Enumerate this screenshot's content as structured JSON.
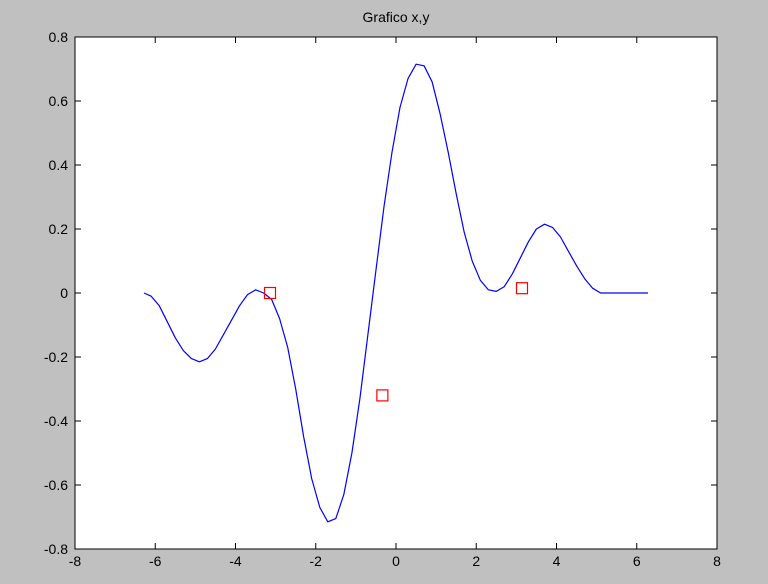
{
  "chart_data": {
    "type": "line",
    "title": "Grafico x,y",
    "xlabel": "",
    "ylabel": "",
    "xlim": [
      -8,
      8
    ],
    "ylim": [
      -0.8,
      0.8
    ],
    "xticks": [
      -8,
      -6,
      -4,
      -2,
      0,
      2,
      4,
      6,
      8
    ],
    "yticks": [
      -0.8,
      -0.6,
      -0.4,
      -0.2,
      0,
      0.2,
      0.4,
      0.6,
      0.8
    ],
    "xtick_labels": [
      "-8",
      "-6",
      "-4",
      "-2",
      "0",
      "2",
      "4",
      "6",
      "8"
    ],
    "ytick_labels": [
      "-0.8",
      "-0.6",
      "-0.4",
      "-0.2",
      "0",
      "0.2",
      "0.4",
      "0.6",
      "0.8"
    ],
    "grid": false,
    "series": [
      {
        "color": "#0000ff",
        "x": [
          -6.28,
          -6.1,
          -5.9,
          -5.7,
          -5.5,
          -5.3,
          -5.1,
          -4.9,
          -4.7,
          -4.5,
          -4.3,
          -4.1,
          -3.9,
          -3.7,
          -3.5,
          -3.3,
          -3.1,
          -2.9,
          -2.7,
          -2.5,
          -2.3,
          -2.1,
          -1.9,
          -1.7,
          -1.5,
          -1.3,
          -1.1,
          -0.9,
          -0.7,
          -0.5,
          -0.3,
          -0.1,
          0.1,
          0.3,
          0.5,
          0.7,
          0.9,
          1.1,
          1.3,
          1.5,
          1.7,
          1.9,
          2.1,
          2.3,
          2.5,
          2.7,
          2.9,
          3.1,
          3.3,
          3.5,
          3.7,
          3.9,
          4.1,
          4.3,
          4.5,
          4.7,
          4.9,
          5.1,
          5.3,
          5.5,
          5.7,
          5.9,
          6.1,
          6.28
        ],
        "y": [
          0.0,
          -0.01,
          -0.04,
          -0.09,
          -0.14,
          -0.18,
          -0.205,
          -0.215,
          -0.205,
          -0.175,
          -0.13,
          -0.085,
          -0.04,
          -0.005,
          0.01,
          0.0,
          -0.02,
          -0.08,
          -0.17,
          -0.3,
          -0.45,
          -0.58,
          -0.67,
          -0.715,
          -0.705,
          -0.63,
          -0.5,
          -0.33,
          -0.13,
          0.07,
          0.27,
          0.44,
          0.58,
          0.67,
          0.715,
          0.71,
          0.66,
          0.56,
          0.44,
          0.31,
          0.19,
          0.1,
          0.04,
          0.01,
          0.005,
          0.02,
          0.06,
          0.11,
          0.16,
          0.2,
          0.215,
          0.205,
          0.175,
          0.13,
          0.085,
          0.045,
          0.015,
          0.0,
          0.0,
          0.0,
          0.0,
          0.0,
          0.0,
          0.0
        ]
      },
      {
        "color": "#ff0000",
        "marker": "square",
        "x": [
          -3.14,
          -0.34,
          3.14
        ],
        "y": [
          0.0,
          -0.32,
          0.015
        ]
      }
    ]
  }
}
